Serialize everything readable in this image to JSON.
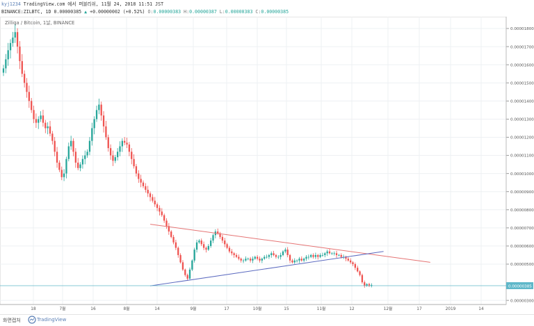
{
  "header": {
    "user": "kyj1234",
    "published": "TradingView.com 에서 퍼블리쉬, 11월 24, 2018 11:51 JST",
    "symbol": "BINANCE:ZILBTC, 1D",
    "last": "0.00000385",
    "change": "+0.00000002 (+0.52%)",
    "o_label": "O:",
    "o_value": "0.00000383",
    "h_label": "H:",
    "h_value": "0.00000387",
    "l_label": "L:",
    "l_value": "0.00000383",
    "c_label": "C:",
    "c_value": "0.00000385"
  },
  "chart": {
    "title": "Zilliqa / Bitcoin, 1날, BINANCE",
    "current_price_label": "0.00000385",
    "colors": {
      "up": "#26a69a",
      "down": "#ef5350",
      "resistance": "#e57373",
      "support": "#5c6bc0",
      "price_line": "#5fb7c9",
      "price_tag": "#5fb7c9",
      "grid": "#eef0f3"
    }
  },
  "chart_data": {
    "type": "candlestick",
    "title": "Zilliqa / Bitcoin, 1날, BINANCE",
    "y_axis_labels": [
      "0.00001800",
      "0.00001700",
      "0.00001600",
      "0.00001500",
      "0.00001400",
      "0.00001300",
      "0.00001200",
      "0.00001100",
      "0.00001000",
      "0.00000900",
      "0.00000800",
      "0.00000700",
      "0.00000600",
      "0.00000500",
      "0.00000300"
    ],
    "y_axis_ticks": [
      1.8e-05,
      1.7e-05,
      1.6e-05,
      1.5e-05,
      1.4e-05,
      1.3e-05,
      1.2e-05,
      1.1e-05,
      1e-05,
      9e-06,
      8e-06,
      7e-06,
      6e-06,
      5e-06,
      3e-06
    ],
    "x_axis_labels": [
      "18",
      "7월",
      "16",
      "8월",
      "14",
      "9월",
      "17",
      "10월",
      "15",
      "11월",
      "12",
      "12월",
      "17",
      "2019",
      "14"
    ],
    "x_axis_positions": [
      48,
      90,
      134,
      182,
      226,
      278,
      326,
      370,
      412,
      462,
      506,
      558,
      603,
      648,
      692
    ],
    "current_price": 3.85e-06,
    "closes": [
      1.58e-05,
      1.63e-05,
      1.68e-05,
      1.72e-05,
      1.75e-05,
      1.78e-05,
      1.7e-05,
      1.62e-05,
      1.55e-05,
      1.5e-05,
      1.45e-05,
      1.4e-05,
      1.35e-05,
      1.3e-05,
      1.28e-05,
      1.3e-05,
      1.32e-05,
      1.28e-05,
      1.25e-05,
      1.26e-05,
      1.22e-05,
      1.18e-05,
      1.12e-05,
      1.06e-05,
      1.02e-05,
      9.8e-06,
      1e-05,
      1.08e-05,
      1.15e-05,
      1.18e-05,
      1.12e-05,
      1.06e-05,
      1.03e-05,
      1.05e-05,
      1.08e-05,
      1.1e-05,
      1.12e-05,
      1.18e-05,
      1.25e-05,
      1.3e-05,
      1.35e-05,
      1.38e-05,
      1.32e-05,
      1.26e-05,
      1.2e-05,
      1.14e-05,
      1.1e-05,
      1.07e-05,
      1.09e-05,
      1.12e-05,
      1.15e-05,
      1.18e-05,
      1.17e-05,
      1.16e-05,
      1.12e-05,
      1.08e-05,
      1.04e-05,
      1e-05,
      9.7e-06,
      9.5e-06,
      9.3e-06,
      9.1e-06,
      8.9e-06,
      8.7e-06,
      8.5e-06,
      8.3e-06,
      8.1e-06,
      7.9e-06,
      7.7e-06,
      7.4e-06,
      7.1e-06,
      6.8e-06,
      6.5e-06,
      6.2e-06,
      5.9e-06,
      5.5e-06,
      5.1e-06,
      4.7e-06,
      4.4e-06,
      4.2e-06,
      4.7e-06,
      5.2e-06,
      5.8e-06,
      6.2e-06,
      6.3e-06,
      6.1e-06,
      5.9e-06,
      5.8e-06,
      6e-06,
      6.3e-06,
      6.6e-06,
      6.8e-06,
      6.7e-06,
      6.5e-06,
      6.3e-06,
      6.1e-06,
      5.9e-06,
      5.7e-06,
      5.6e-06,
      5.5e-06,
      5.4e-06,
      5.3e-06,
      5.2e-06,
      5.2e-06,
      5.3e-06,
      5.3e-06,
      5.2e-06,
      5.3e-06,
      5.4e-06,
      5.3e-06,
      5.2e-06,
      5.3e-06,
      5.4e-06,
      5.4e-06,
      5.5e-06,
      5.6e-06,
      5.5e-06,
      5.4e-06,
      5.4e-06,
      5.5e-06,
      5.7e-06,
      5.8e-06,
      5.5e-06,
      5.2e-06,
      5.1e-06,
      5.2e-06,
      5.2e-06,
      5.3e-06,
      5.2e-06,
      5.3e-06,
      5.4e-06,
      5.4e-06,
      5.5e-06,
      5.4e-06,
      5.5e-06,
      5.4e-06,
      5.5e-06,
      5.5e-06,
      5.6e-06,
      5.7e-06,
      5.6e-06,
      5.6e-06,
      5.6e-06,
      5.5e-06,
      5.5e-06,
      5.4e-06,
      5.4e-06,
      5.3e-06,
      5.2e-06,
      5.1e-06,
      5e-06,
      4.8e-06,
      4.6e-06,
      4.4e-06,
      4e-06,
      3.8e-06,
      3.9e-06,
      3.8e-06,
      3.85e-06
    ],
    "resistance_line": {
      "x": [
        "2018-08-12",
        "2018-12-20"
      ],
      "y": [
        7.2e-06,
        5.1e-06
      ]
    },
    "support_line": {
      "x": [
        "2018-08-12",
        "2018-11-29"
      ],
      "y": [
        3.8e-06,
        5.7e-06
      ]
    }
  },
  "footer": {
    "save_label": "화면캡처",
    "brand": "TradingView"
  }
}
